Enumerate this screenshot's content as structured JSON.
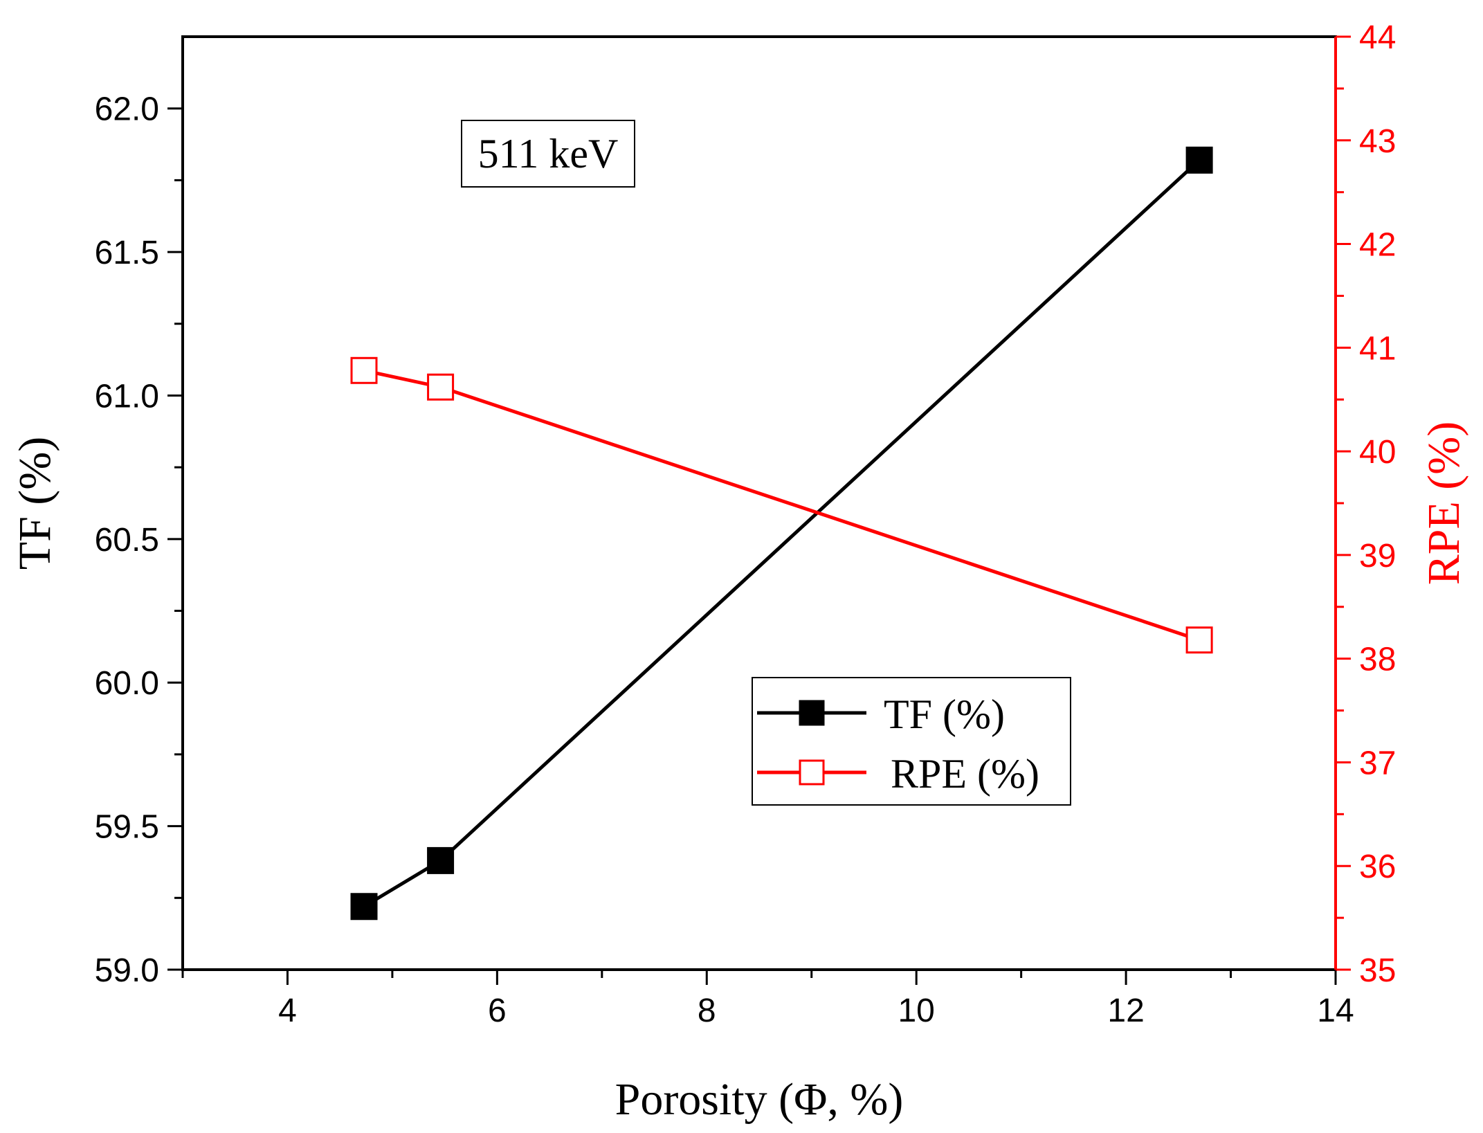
{
  "chart_data": {
    "type": "line",
    "title": "",
    "annotation": "511 keV",
    "xlabel": "Porosity (Φ, %)",
    "ylabel_left": "TF (%)",
    "ylabel_right": "RPE (%)",
    "xlim": [
      3,
      14
    ],
    "ylim_left": [
      59.0,
      62.25
    ],
    "ylim_right": [
      35,
      44
    ],
    "x_ticks": [
      "4",
      "6",
      "8",
      "10",
      "12",
      "14"
    ],
    "y_left_ticks": [
      "59.0",
      "59.5",
      "60.0",
      "60.5",
      "61.0",
      "61.5",
      "62.0"
    ],
    "y_right_ticks": [
      "35",
      "36",
      "37",
      "38",
      "39",
      "40",
      "41",
      "42",
      "43",
      "44"
    ],
    "grid": false,
    "legend_position": "center-right",
    "series": [
      {
        "name": "TF (%)",
        "axis": "left",
        "color": "#000000",
        "marker": "filled-square",
        "x": [
          4.73,
          5.46,
          12.7
        ],
        "values": [
          59.22,
          59.38,
          61.82
        ]
      },
      {
        "name": "RPE (%)",
        "axis": "right",
        "color": "#ff0000",
        "marker": "open-square",
        "x": [
          4.73,
          5.46,
          12.7
        ],
        "values": [
          40.78,
          40.62,
          38.18
        ]
      }
    ]
  }
}
